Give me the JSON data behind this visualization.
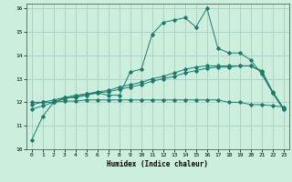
{
  "xlabel": "Humidex (Indice chaleur)",
  "ylabel": "",
  "bg_color": "#cceedd",
  "grid_color": "#aacccc",
  "line_color": "#1a7a6e",
  "xlim": [
    -0.5,
    23.5
  ],
  "ylim": [
    10,
    16.2
  ],
  "xticks": [
    0,
    1,
    2,
    3,
    4,
    5,
    6,
    7,
    8,
    9,
    10,
    11,
    12,
    13,
    14,
    15,
    16,
    17,
    18,
    19,
    20,
    21,
    22,
    23
  ],
  "yticks": [
    10,
    11,
    12,
    13,
    14,
    15,
    16
  ],
  "curve1_x": [
    0,
    1,
    2,
    3,
    4,
    5,
    6,
    7,
    8,
    9,
    10,
    11,
    12,
    13,
    14,
    15,
    16,
    17,
    18,
    19,
    20,
    21,
    22,
    23
  ],
  "curve1_y": [
    10.4,
    11.4,
    12.0,
    12.2,
    12.2,
    12.3,
    12.4,
    12.3,
    12.3,
    13.3,
    13.4,
    14.9,
    15.4,
    15.5,
    15.6,
    15.2,
    16.0,
    14.3,
    14.1,
    14.1,
    13.8,
    13.2,
    12.4,
    11.7
  ],
  "curve2_x": [
    0,
    1,
    2,
    3,
    4,
    5,
    6,
    7,
    8,
    9,
    10,
    11,
    12,
    13,
    14,
    15,
    16,
    17,
    18,
    19,
    20,
    21,
    22,
    23
  ],
  "curve2_y": [
    12.0,
    12.0,
    12.0,
    12.05,
    12.05,
    12.1,
    12.1,
    12.1,
    12.1,
    12.1,
    12.1,
    12.1,
    12.1,
    12.1,
    12.1,
    12.1,
    12.1,
    12.1,
    12.0,
    12.0,
    11.9,
    11.9,
    11.85,
    11.8
  ],
  "curve3_x": [
    0,
    1,
    2,
    3,
    4,
    5,
    6,
    7,
    8,
    9,
    10,
    11,
    12,
    13,
    14,
    15,
    16,
    17,
    18,
    19,
    20,
    21,
    22,
    23
  ],
  "curve3_y": [
    11.9,
    12.0,
    12.1,
    12.2,
    12.3,
    12.35,
    12.4,
    12.45,
    12.55,
    12.65,
    12.75,
    12.9,
    13.0,
    13.1,
    13.25,
    13.35,
    13.45,
    13.5,
    13.5,
    13.55,
    13.55,
    13.3,
    12.4,
    11.7
  ],
  "curve4_x": [
    0,
    1,
    2,
    3,
    4,
    5,
    6,
    7,
    8,
    9,
    10,
    11,
    12,
    13,
    14,
    15,
    16,
    17,
    18,
    19,
    20,
    21,
    22,
    23
  ],
  "curve4_y": [
    11.7,
    11.85,
    12.0,
    12.15,
    12.25,
    12.35,
    12.45,
    12.5,
    12.65,
    12.75,
    12.85,
    13.0,
    13.1,
    13.25,
    13.4,
    13.5,
    13.55,
    13.55,
    13.55,
    13.55,
    13.55,
    13.35,
    12.45,
    11.75
  ]
}
